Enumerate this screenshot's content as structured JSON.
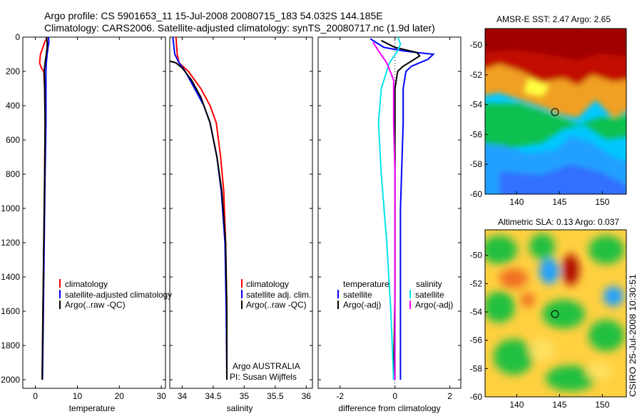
{
  "title": {
    "line1": "Argo profile: CS 5901653_11 15-Jul-2008 20080715_183 54.032S 144.185E",
    "line2": "Climatology: CARS2006. Satellite-adjusted climatology: synTS_20080717.nc (1.9d later)"
  },
  "panels": {
    "temperature": {
      "xlabel": "temperature",
      "xticks": [
        "0",
        "10",
        "20",
        "30"
      ],
      "yticks": [
        "0",
        "200",
        "400",
        "600",
        "800",
        "1000",
        "1200",
        "1400",
        "1600",
        "1800",
        "2000"
      ],
      "legend": [
        "climatology",
        "satellite-adjusted climatology",
        "Argo(..raw -QC)"
      ]
    },
    "salinity": {
      "xlabel": "salinity",
      "xticks": [
        "34",
        "34.5",
        "35",
        "35.5",
        "36"
      ],
      "legend": [
        "climatology",
        "satellite adj. clim.",
        "Argo(..raw -QC)"
      ],
      "note_line1": "Argo AUSTRALIA",
      "note_line2": "PI: Susan Wijffels"
    },
    "difference": {
      "xlabel": "difference from climatology",
      "xticks": [
        "-2",
        "0",
        "2"
      ],
      "legend_temp_header": "temperature",
      "legend_temp": [
        "satellite",
        "Argo(-adj)"
      ],
      "legend_sal_header": "salinity",
      "legend_sal": [
        "satellite",
        "Argo(-adj)"
      ]
    },
    "sst_map": {
      "title": "AMSR-E SST: 2.47 Argo: 2.65",
      "yticks": [
        "-50",
        "-52",
        "-54",
        "-56",
        "-58",
        "-60"
      ],
      "xticks": [
        "140",
        "145",
        "150"
      ]
    },
    "sla_map": {
      "title": "Altimetric SLA: 0.13 Argo: 0.037",
      "yticks": [
        "-50",
        "-52",
        "-54",
        "-56",
        "-58",
        "-60"
      ],
      "xticks": [
        "140",
        "145",
        "150"
      ]
    },
    "side_text": "CSIRO 25-Jul-2008 10:30:51"
  },
  "colors": {
    "climatology": "#ff0000",
    "satellite": "#0000ff",
    "argo": "#000000",
    "sal_satellite": "#00e5ee",
    "sal_argo": "#ff00ff"
  },
  "chart_data": [
    {
      "type": "line",
      "name": "temperature",
      "ylim": [
        2050,
        0
      ],
      "xlim": [
        -3,
        31
      ],
      "series": [
        {
          "name": "climatology",
          "points": [
            [
              2.8,
              0
            ],
            [
              2.2,
              30
            ],
            [
              1.8,
              60
            ],
            [
              1.2,
              100
            ],
            [
              1.0,
              150
            ],
            [
              1.4,
              180
            ],
            [
              2.0,
              200
            ],
            [
              2.2,
              300
            ],
            [
              2.3,
              500
            ],
            [
              2.2,
              800
            ],
            [
              2.0,
              1200
            ],
            [
              1.8,
              1600
            ],
            [
              1.6,
              2000
            ]
          ]
        },
        {
          "name": "satellite-adjusted climatology",
          "points": [
            [
              3.1,
              0
            ],
            [
              3.2,
              30
            ],
            [
              3.0,
              60
            ],
            [
              2.8,
              100
            ],
            [
              2.6,
              150
            ],
            [
              2.5,
              200
            ],
            [
              2.5,
              300
            ],
            [
              2.5,
              500
            ],
            [
              2.3,
              800
            ],
            [
              2.1,
              1200
            ],
            [
              1.9,
              1600
            ],
            [
              1.7,
              2000
            ]
          ]
        },
        {
          "name": "Argo(..raw -QC)",
          "points": [
            [
              2.65,
              0
            ],
            [
              2.8,
              30
            ],
            [
              2.8,
              60
            ],
            [
              2.6,
              100
            ],
            [
              2.3,
              150
            ],
            [
              2.1,
              200
            ],
            [
              2.2,
              300
            ],
            [
              2.3,
              500
            ],
            [
              2.2,
              800
            ],
            [
              2.0,
              1200
            ],
            [
              1.8,
              1600
            ],
            [
              1.6,
              2000
            ]
          ]
        }
      ]
    },
    {
      "type": "line",
      "name": "salinity",
      "ylim": [
        2050,
        0
      ],
      "xlim": [
        33.8,
        36.1
      ],
      "series": [
        {
          "name": "climatology",
          "points": [
            [
              33.9,
              0
            ],
            [
              33.92,
              100
            ],
            [
              33.95,
              150
            ],
            [
              34.1,
              200
            ],
            [
              34.3,
              300
            ],
            [
              34.45,
              400
            ],
            [
              34.55,
              500
            ],
            [
              34.62,
              700
            ],
            [
              34.67,
              900
            ],
            [
              34.7,
              1200
            ],
            [
              34.72,
              1600
            ],
            [
              34.72,
              2000
            ]
          ]
        },
        {
          "name": "satellite adj. clim.",
          "points": [
            [
              33.85,
              0
            ],
            [
              33.88,
              100
            ],
            [
              33.95,
              150
            ],
            [
              34.05,
              200
            ],
            [
              34.2,
              300
            ],
            [
              34.35,
              400
            ],
            [
              34.45,
              500
            ],
            [
              34.56,
              700
            ],
            [
              34.63,
              900
            ],
            [
              34.69,
              1200
            ],
            [
              34.71,
              1600
            ],
            [
              34.72,
              2000
            ]
          ]
        },
        {
          "name": "Argo(..raw -QC)",
          "points": [
            [
              33.8,
              140
            ],
            [
              33.9,
              150
            ],
            [
              34.0,
              180
            ],
            [
              34.15,
              250
            ],
            [
              34.3,
              350
            ],
            [
              34.45,
              500
            ],
            [
              34.56,
              700
            ],
            [
              34.64,
              900
            ],
            [
              34.7,
              1200
            ],
            [
              34.72,
              1600
            ],
            [
              34.72,
              2000
            ]
          ]
        }
      ]
    },
    {
      "type": "line",
      "name": "difference from climatology",
      "ylim": [
        2050,
        0
      ],
      "xlim": [
        -2.8,
        2.4
      ],
      "series": [
        {
          "name": "temperature satellite",
          "points": [
            [
              -0.9,
              10
            ],
            [
              -0.4,
              60
            ],
            [
              0.3,
              80
            ],
            [
              0.8,
              90
            ],
            [
              1.4,
              100
            ],
            [
              1.2,
              130
            ],
            [
              0.6,
              170
            ],
            [
              0.4,
              200
            ],
            [
              0.3,
              300
            ],
            [
              0.3,
              500
            ],
            [
              0.2,
              1000
            ],
            [
              0.2,
              1500
            ],
            [
              0.2,
              2000
            ]
          ]
        },
        {
          "name": "temperature Argo(-adj)",
          "points": [
            [
              -0.5,
              20
            ],
            [
              0.0,
              60
            ],
            [
              0.8,
              90
            ],
            [
              0.9,
              110
            ],
            [
              0.6,
              140
            ],
            [
              0.3,
              170
            ],
            [
              0.1,
              200
            ],
            [
              0.0,
              300
            ],
            [
              0.0,
              600
            ],
            [
              0.0,
              1000
            ],
            [
              0.0,
              1500
            ],
            [
              -0.05,
              2000
            ]
          ]
        },
        {
          "name": "salinity satellite",
          "points": [
            [
              0.1,
              0
            ],
            [
              0.2,
              40
            ],
            [
              0.1,
              80
            ],
            [
              -0.2,
              150
            ],
            [
              -0.5,
              300
            ],
            [
              -0.6,
              500
            ],
            [
              -0.5,
              800
            ],
            [
              -0.3,
              1200
            ],
            [
              -0.15,
              1600
            ],
            [
              -0.05,
              2000
            ]
          ]
        },
        {
          "name": "salinity Argo(-adj)",
          "points": [
            [
              -0.8,
              30
            ],
            [
              -0.6,
              80
            ],
            [
              -0.3,
              150
            ],
            [
              -0.05,
              250
            ],
            [
              -0.05,
              500
            ],
            [
              0.0,
              800
            ],
            [
              0.0,
              1200
            ],
            [
              0.0,
              2000
            ]
          ]
        }
      ]
    }
  ]
}
